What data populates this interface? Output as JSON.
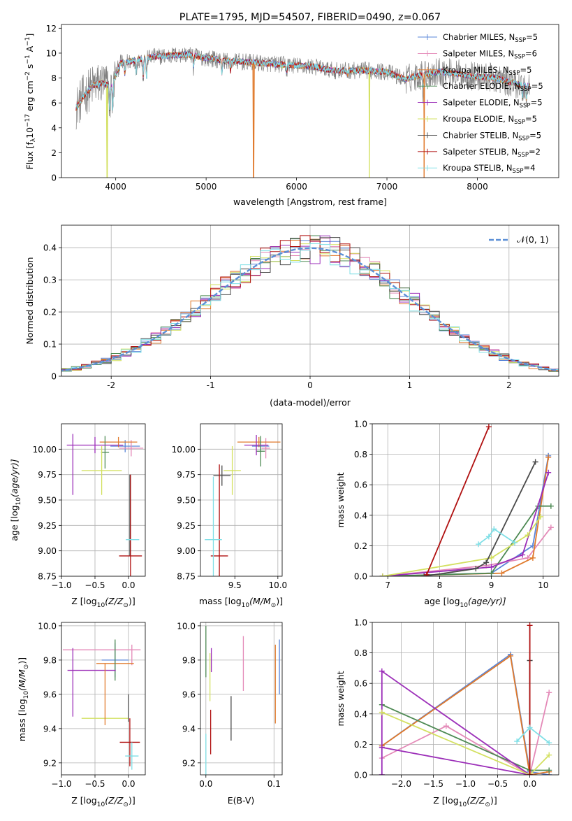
{
  "colors": [
    "#5a86d8",
    "#e48ab8",
    "#e07a2c",
    "#4e8a54",
    "#9b2db8",
    "#d3e060",
    "#4a4a4a",
    "#b01010",
    "#7fdfe6"
  ],
  "chart_data": [
    {
      "id": "spectrum",
      "type": "line",
      "title": "PLATE=1795, MJD=54507, FIBERID=0490, z=0.067",
      "xlabel": "wavelength [Angstrom, rest frame]",
      "ylabel": "Flux [f",
      "ylabel_sub": "λ",
      "ylabel_mid": "10",
      "ylabel_sup1": "−17",
      "ylabel_rest": " erg cm",
      "ylabel_sup2": "−2",
      "ylabel_rest2": " s",
      "ylabel_sup3": "−1",
      "ylabel_rest3": " A",
      "ylabel_sup4": "−1",
      "ylabel_end": "]",
      "xlim": [
        3400,
        8900
      ],
      "ylim": [
        0,
        12.3
      ],
      "xticks": [
        4000,
        5000,
        6000,
        7000,
        8000
      ],
      "yticks": [
        0,
        2,
        4,
        6,
        8,
        10,
        12
      ],
      "legend_position": "top-right",
      "legend": [
        {
          "name": "Chabrier MILES, N",
          "sub": "SSP",
          "tail": "=5"
        },
        {
          "name": "Salpeter MILES, N",
          "sub": "SSP",
          "tail": "=6"
        },
        {
          "name": "Kroupa MILES, N",
          "sub": "SSP",
          "tail": "=5"
        },
        {
          "name": "Chabrier ELODIE, N",
          "sub": "SSP",
          "tail": "=5"
        },
        {
          "name": "Salpeter ELODIE, N",
          "sub": "SSP",
          "tail": "=5"
        },
        {
          "name": "Kroupa ELODIE, N",
          "sub": "SSP",
          "tail": "=5"
        },
        {
          "name": "Chabrier STELIB, N",
          "sub": "SSP",
          "tail": "=5"
        },
        {
          "name": "Salpeter STELIB, N",
          "sub": "SSP",
          "tail": "=2"
        },
        {
          "name": "Kroupa STELIB, N",
          "sub": "SSP",
          "tail": "=4"
        }
      ],
      "continuum": [
        [
          3560,
          5.6
        ],
        [
          3650,
          6.6
        ],
        [
          3750,
          7.4
        ],
        [
          3850,
          7.6
        ],
        [
          3950,
          7.3
        ],
        [
          4050,
          9.2
        ],
        [
          4200,
          9.4
        ],
        [
          4400,
          9.7
        ],
        [
          4600,
          9.8
        ],
        [
          4800,
          9.9
        ],
        [
          5000,
          9.6
        ],
        [
          5200,
          9.4
        ],
        [
          5400,
          9.3
        ],
        [
          5600,
          9.2
        ],
        [
          5800,
          9.1
        ],
        [
          6000,
          9.0
        ],
        [
          6200,
          8.9
        ],
        [
          6400,
          8.6
        ],
        [
          6600,
          8.6
        ],
        [
          6800,
          8.6
        ],
        [
          7000,
          8.5
        ],
        [
          7200,
          7.9
        ],
        [
          7400,
          8.3
        ],
        [
          7600,
          8.5
        ],
        [
          7800,
          8.3
        ],
        [
          8000,
          8.1
        ],
        [
          8200,
          8.0
        ],
        [
          8400,
          7.6
        ],
        [
          8580,
          7.3
        ]
      ],
      "absorption_lines": [
        [
          3934,
          5.2
        ],
        [
          3968,
          5.4
        ],
        [
          4102,
          8.2
        ],
        [
          4227,
          8.4
        ],
        [
          4304,
          7.9
        ],
        [
          4340,
          8.0
        ],
        [
          4861,
          8.8
        ],
        [
          5175,
          8.3
        ],
        [
          5270,
          8.5
        ],
        [
          5890,
          8.4
        ],
        [
          6563,
          8.2
        ],
        [
          7400,
          7.1
        ],
        [
          8498,
          6.4
        ],
        [
          8542,
          6.2
        ],
        [
          8662,
          6.6
        ]
      ],
      "dropouts": [
        {
          "series": 5,
          "x": 3905
        },
        {
          "series": 2,
          "x": 5525
        },
        {
          "series": 5,
          "x": 6805
        },
        {
          "series": 2,
          "x": 7410
        }
      ]
    },
    {
      "id": "residuals",
      "type": "line",
      "xlabel": "(data-model)/error",
      "ylabel": "Normed distribution",
      "xlim": [
        -2.5,
        2.5
      ],
      "ylim": [
        0,
        0.47
      ],
      "xticks": [
        -2,
        -1,
        0,
        1,
        2
      ],
      "yticks": [
        0.0,
        0.1,
        0.2,
        0.3,
        0.4
      ],
      "legend_position": "top-right",
      "gaussian_label": "𝒩(0, 1)",
      "gaussian_color": "#5b8fd6",
      "bin_width": 0.1
    },
    {
      "id": "age-vs-Z",
      "type": "scatter",
      "xlabel_pre": "Z [log",
      "xlabel_sub": "10",
      "xlabel_post": "(Z/Z",
      "xlabel_sub2": "⊙",
      "xlabel_end": ")]",
      "ylabel_pre": "age  [log",
      "ylabel_sub": "10",
      "ylabel_post": "(age/yr)]",
      "xlim": [
        -1.0,
        0.25
      ],
      "ylim": [
        8.75,
        10.25
      ],
      "xticks": [
        -1.0,
        -0.5,
        0.0
      ],
      "xtick_labels": [
        "−1.0",
        "−0.5",
        "0.0"
      ],
      "yticks": [
        8.75,
        9.0,
        9.25,
        9.5,
        9.75,
        10.0
      ],
      "ytick_labels": [
        "8.75",
        "9.00",
        "9.25",
        "9.50",
        "9.75",
        "10.00"
      ],
      "points": [
        {
          "series": 0,
          "x": -0.05,
          "y": 10.03,
          "xerr": 0.22,
          "yerr": 0.06
        },
        {
          "series": 1,
          "x": 0.04,
          "y": 10.01,
          "xerr": 0.18,
          "yerr": 0.08
        },
        {
          "series": 2,
          "x": -0.15,
          "y": 10.07,
          "xerr": 0.28,
          "yerr": 0.05
        },
        {
          "series": 3,
          "x": -0.35,
          "y": 9.97,
          "xerr": 0.06,
          "yerr": 0.16
        },
        {
          "series": 4,
          "x": -0.5,
          "y": 10.04,
          "xerr": 0.42,
          "yerr": 0.08
        },
        {
          "series": 4,
          "x": -0.83,
          "y": 9.85,
          "xerr": 0.0,
          "yerr": 0.3
        },
        {
          "series": 5,
          "x": -0.4,
          "y": 9.79,
          "xerr": 0.3,
          "yerr": 0.24
        },
        {
          "series": 6,
          "x": 0.02,
          "y": 9.35,
          "xerr": 0.0,
          "yerr": 0.4
        },
        {
          "series": 7,
          "x": 0.03,
          "y": 8.95,
          "xerr": 0.17,
          "yerr": 0.8
        },
        {
          "series": 8,
          "x": 0.06,
          "y": 9.11,
          "xerr": 0.1,
          "yerr": 0.0
        }
      ]
    },
    {
      "id": "age-vs-mass",
      "type": "scatter",
      "xlabel_pre": "mass [log",
      "xlabel_sub": "10",
      "xlabel_post": "(M/M",
      "xlabel_sub2": "⊙",
      "xlabel_end": ")]",
      "xlim": [
        9.1,
        10.05
      ],
      "ylim": [
        8.75,
        10.25
      ],
      "xticks": [
        9.5,
        10.0
      ],
      "xtick_labels": [
        "9.5",
        "10.0"
      ],
      "yticks": [
        8.75,
        9.0,
        9.25,
        9.5,
        9.75,
        10.0
      ],
      "ytick_labels": [
        "8.75",
        "9.00",
        "9.25",
        "9.50",
        "9.75",
        "10.00"
      ],
      "points": [
        {
          "series": 0,
          "x": 9.8,
          "y": 10.03,
          "xerr": 0.1,
          "yerr": 0.06
        },
        {
          "series": 1,
          "x": 9.86,
          "y": 10.01,
          "xerr": 0.05,
          "yerr": 0.1
        },
        {
          "series": 2,
          "x": 9.78,
          "y": 10.07,
          "xerr": 0.25,
          "yerr": 0.05
        },
        {
          "series": 3,
          "x": 9.8,
          "y": 9.98,
          "xerr": 0.05,
          "yerr": 0.15
        },
        {
          "series": 4,
          "x": 9.75,
          "y": 10.04,
          "xerr": 0.14,
          "yerr": 0.1
        },
        {
          "series": 5,
          "x": 9.47,
          "y": 9.79,
          "xerr": 0.1,
          "yerr": 0.24
        },
        {
          "series": 6,
          "x": 9.35,
          "y": 9.74,
          "xerr": 0.1,
          "yerr": 0.1
        },
        {
          "series": 7,
          "x": 9.32,
          "y": 8.95,
          "xerr": 0.1,
          "yerr": 0.9
        },
        {
          "series": 8,
          "x": 9.25,
          "y": 9.11,
          "xerr": 0.1,
          "yerr": 0.62
        }
      ]
    },
    {
      "id": "weight-vs-age",
      "type": "line",
      "xlabel_pre": "age  [log",
      "xlabel_sub": "10",
      "xlabel_post": "(age/yr)]",
      "ylabel": "mass weight",
      "xlim": [
        6.7,
        10.3
      ],
      "ylim": [
        0,
        1.0
      ],
      "xticks": [
        7,
        8,
        9,
        10
      ],
      "xtick_labels": [
        "7",
        "8",
        "9",
        "10"
      ],
      "yticks": [
        0.0,
        0.2,
        0.4,
        0.6,
        0.8,
        1.0
      ],
      "ytick_labels": [
        "0.0",
        "0.2",
        "0.4",
        "0.6",
        "0.8",
        "1.0"
      ],
      "series": [
        {
          "x": [
            6.9,
            9.0,
            9.8,
            10.1
          ],
          "y": [
            0.0,
            0.02,
            0.2,
            0.79
          ]
        },
        {
          "x": [
            6.9,
            8.9,
            9.7,
            10.15
          ],
          "y": [
            0.0,
            0.07,
            0.12,
            0.32
          ]
        },
        {
          "x": [
            6.9,
            9.2,
            9.8,
            10.1
          ],
          "y": [
            0.0,
            0.02,
            0.12,
            0.78
          ]
        },
        {
          "x": [
            6.9,
            9.0,
            9.9,
            10.15
          ],
          "y": [
            0.0,
            0.02,
            0.46,
            0.46
          ]
        },
        {
          "x": [
            6.9,
            9.0,
            9.6,
            10.1
          ],
          "y": [
            0.0,
            0.06,
            0.14,
            0.68
          ]
        },
        {
          "x": [
            6.9,
            9.0,
            9.7,
            9.95
          ],
          "y": [
            0.0,
            0.12,
            0.27,
            0.39
          ]
        },
        {
          "x": [
            7.7,
            8.7,
            8.9,
            9.85
          ],
          "y": [
            0.0,
            0.05,
            0.09,
            0.75
          ]
        },
        {
          "x": [
            7.75,
            8.95
          ],
          "y": [
            0.01,
            0.98
          ]
        },
        {
          "x": [
            8.75,
            8.95,
            9.05,
            9.45
          ],
          "y": [
            0.21,
            0.26,
            0.31,
            0.22
          ]
        }
      ]
    },
    {
      "id": "mass-vs-Z",
      "type": "scatter",
      "xlabel_pre": "Z [log",
      "xlabel_sub": "10",
      "xlabel_post": "(Z/Z",
      "xlabel_sub2": "⊙",
      "xlabel_end": ")]",
      "ylabel_pre": "mass [log",
      "ylabel_sub": "10",
      "ylabel_post": "(M/M",
      "ylabel_sub2": "⊙",
      "ylabel_end": ")]",
      "xlim": [
        -1.0,
        0.25
      ],
      "ylim": [
        9.13,
        10.02
      ],
      "xticks": [
        -1.0,
        -0.5,
        0.0
      ],
      "xtick_labels": [
        "−1.0",
        "−0.5",
        "0.0"
      ],
      "yticks": [
        9.2,
        9.4,
        9.6,
        9.8,
        10.0
      ],
      "ytick_labels": [
        "9.2",
        "9.4",
        "9.6",
        "9.8",
        "10.0"
      ],
      "points": [
        {
          "series": 0,
          "x": -0.2,
          "y": 9.8,
          "xerr": 0.2,
          "yerr": 0.1
        },
        {
          "series": 1,
          "x": -0.4,
          "y": 9.86,
          "xerr": 0.58,
          "yerr": 0.0
        },
        {
          "series": 1,
          "x": 0.05,
          "y": 9.83,
          "xerr": 0.0,
          "yerr": 0.06
        },
        {
          "series": 2,
          "x": -0.2,
          "y": 9.78,
          "xerr": 0.28,
          "yerr": 0.0
        },
        {
          "series": 3,
          "x": -0.2,
          "y": 9.8,
          "xerr": 0.0,
          "yerr": 0.12
        },
        {
          "series": 4,
          "x": -0.55,
          "y": 9.74,
          "xerr": 0.36,
          "yerr": 0.0
        },
        {
          "series": 4,
          "x": -0.83,
          "y": 9.67,
          "xerr": 0.0,
          "yerr": 0.2
        },
        {
          "series": 5,
          "x": -0.35,
          "y": 9.46,
          "xerr": 0.35,
          "yerr": 0.0
        },
        {
          "series": 2,
          "x": -0.35,
          "y": 9.6,
          "xerr": 0.0,
          "yerr": 0.18
        },
        {
          "series": 6,
          "x": 0.0,
          "y": 9.52,
          "xerr": 0.0,
          "yerr": 0.08
        },
        {
          "series": 7,
          "x": 0.02,
          "y": 9.32,
          "xerr": 0.15,
          "yerr": 0.14
        },
        {
          "series": 8,
          "x": 0.05,
          "y": 9.24,
          "xerr": 0.1,
          "yerr": 0.08
        }
      ]
    },
    {
      "id": "mass-vs-ebv",
      "type": "scatter",
      "xlabel": "E(B-V)",
      "xlim": [
        -0.008,
        0.112
      ],
      "ylim": [
        9.13,
        10.02
      ],
      "xticks": [
        0.0,
        0.1
      ],
      "xtick_labels": [
        "0.0",
        "0.1"
      ],
      "yticks": [
        9.2,
        9.4,
        9.6,
        9.8,
        10.0
      ],
      "ytick_labels": [
        "9.2",
        "9.4",
        "9.6",
        "9.8",
        "10.0"
      ],
      "points": [
        {
          "series": 3,
          "x": 0.0,
          "y": 9.85,
          "xerr": 0.0,
          "yerr": 0.15
        },
        {
          "series": 8,
          "x": 0.0,
          "y": 9.22,
          "xerr": 0.0,
          "yerr": 0.15
        },
        {
          "series": 4,
          "x": 0.008,
          "y": 9.8,
          "xerr": 0.0,
          "yerr": 0.07
        },
        {
          "series": 5,
          "x": 0.006,
          "y": 9.7,
          "xerr": 0.0,
          "yerr": 0.14
        },
        {
          "series": 7,
          "x": 0.007,
          "y": 9.38,
          "xerr": 0.0,
          "yerr": 0.13
        },
        {
          "series": 6,
          "x": 0.037,
          "y": 9.46,
          "xerr": 0.0,
          "yerr": 0.13
        },
        {
          "series": 1,
          "x": 0.055,
          "y": 9.78,
          "xerr": 0.0,
          "yerr": 0.16
        },
        {
          "series": 2,
          "x": 0.102,
          "y": 9.66,
          "xerr": 0.0,
          "yerr": 0.23
        },
        {
          "series": 0,
          "x": 0.108,
          "y": 9.76,
          "xerr": 0.0,
          "yerr": 0.16
        }
      ]
    },
    {
      "id": "weight-vs-Z",
      "type": "line",
      "xlabel_pre": "Z [log",
      "xlabel_sub": "10",
      "xlabel_post": "(Z/Z",
      "xlabel_sub2": "⊙",
      "xlabel_end": ")]",
      "ylabel": "mass weight",
      "xlim": [
        -2.45,
        0.45
      ],
      "ylim": [
        0,
        1.0
      ],
      "xticks": [
        -2.0,
        -1.5,
        -1.0,
        -0.5,
        0.0
      ],
      "xtick_labels": [
        "−2.0",
        "−1.5",
        "−1.0",
        "−0.5",
        "0.0"
      ],
      "yticks": [
        0.0,
        0.2,
        0.4,
        0.6,
        0.8,
        1.0
      ],
      "ytick_labels": [
        "0.0",
        "0.2",
        "0.4",
        "0.6",
        "0.8",
        "1.0"
      ],
      "series": [
        {
          "x": [
            -2.3,
            -0.3,
            0.0,
            0.3
          ],
          "y": [
            0.19,
            0.79,
            0.02,
            0.0
          ]
        },
        {
          "x": [
            -2.3,
            -1.3,
            0.0,
            0.3
          ],
          "y": [
            0.11,
            0.32,
            0.0,
            0.54
          ]
        },
        {
          "x": [
            -2.3,
            -0.3,
            0.0,
            0.3
          ],
          "y": [
            0.19,
            0.78,
            0.0,
            0.02
          ]
        },
        {
          "x": [
            -2.3,
            0.0,
            0.3
          ],
          "y": [
            0.46,
            0.03,
            0.03
          ]
        },
        {
          "x": [
            -2.3,
            0.0,
            -2.3,
            -2.3
          ],
          "y": [
            0.18,
            0.0,
            0.68,
            0.0
          ]
        },
        {
          "x": [
            -2.3,
            0.0,
            0.3
          ],
          "y": [
            0.41,
            0.0,
            0.13
          ]
        },
        {
          "x": [
            0.0,
            0.0
          ],
          "y": [
            0.0,
            0.75
          ]
        },
        {
          "x": [
            0.0,
            0.0
          ],
          "y": [
            0.0,
            0.98
          ]
        },
        {
          "x": [
            -0.2,
            0.0,
            0.3
          ],
          "y": [
            0.22,
            0.31,
            0.21
          ]
        }
      ]
    }
  ]
}
